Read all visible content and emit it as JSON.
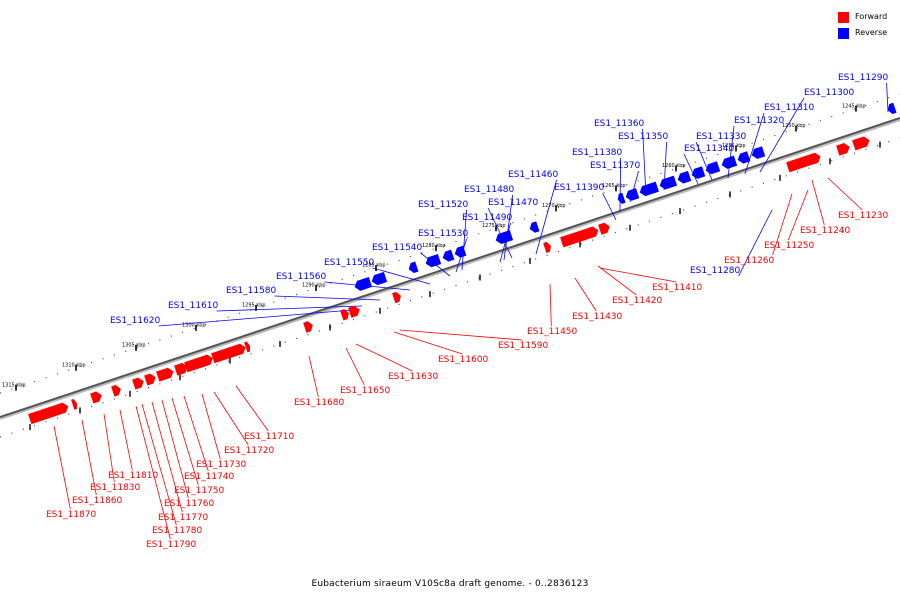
{
  "legend": {
    "forward_label": "Forward",
    "reverse_label": "Reverse",
    "forward_color": "#ff0000",
    "reverse_color": "#0000ff"
  },
  "caption": "Eubacterium siraeum V10Sc8a draft genome. - 0..2836123",
  "scale_labels": [
    "1245 kbp",
    "1250 kbp",
    "1255 kbp",
    "1260 kbp",
    "1265 kbp",
    "1270 kbp",
    "1275 kbp",
    "1280 kbp",
    "1285 kbp",
    "1290 kbp",
    "1295 kbp",
    "1300 kbp",
    "1305 kbp",
    "1310 kbp",
    "1315 kbp"
  ],
  "reverse_genes": [
    "ES1_11290",
    "ES1_11300",
    "ES1_11310",
    "ES1_11320",
    "ES1_11330",
    "ES1_11340",
    "ES1_11350",
    "ES1_11360",
    "ES1_11370",
    "ES1_11380",
    "ES1_11390",
    "ES1_11460",
    "ES1_11470",
    "ES1_11480",
    "ES1_11490",
    "ES1_11520",
    "ES1_11530",
    "ES1_11540",
    "ES1_11550",
    "ES1_11560",
    "ES1_11580",
    "ES1_11610",
    "ES1_11620",
    "ES1_11280"
  ],
  "forward_genes": [
    "ES1_11230",
    "ES1_11240",
    "ES1_11250",
    "ES1_11260",
    "ES1_11410",
    "ES1_11420",
    "ES1_11430",
    "ES1_11450",
    "ES1_11590",
    "ES1_11600",
    "ES1_11630",
    "ES1_11650",
    "ES1_11680",
    "ES1_11710",
    "ES1_11720",
    "ES1_11730",
    "ES1_11740",
    "ES1_11750",
    "ES1_11760",
    "ES1_11770",
    "ES1_11780",
    "ES1_11790",
    "ES1_11810",
    "ES1_11830",
    "ES1_11860",
    "ES1_11870"
  ]
}
